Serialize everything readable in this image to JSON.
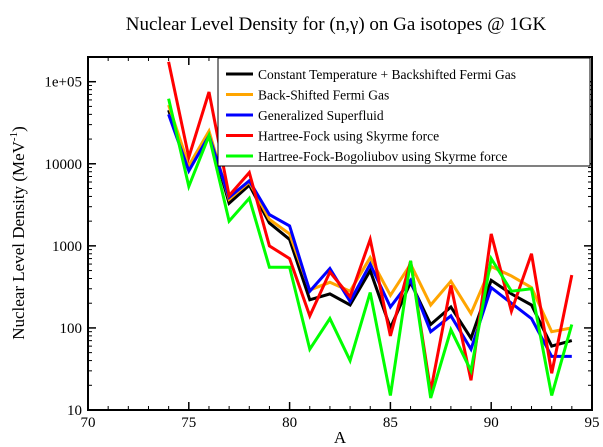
{
  "chart_data": {
    "type": "line",
    "title": "Nuclear Level Density for (n,γ) on Ga isotopes @ 1GK",
    "xlabel": "A",
    "ylabel": "Nuclear Level Density (MeV",
    "ylabel_sup": "-1",
    "ylabel_close": ")",
    "xlim": [
      70,
      95
    ],
    "ylim": [
      10,
      200000
    ],
    "yscale": "log",
    "grid": false,
    "legend_position": "top-right",
    "x_ticks": [
      70,
      75,
      80,
      85,
      90,
      95
    ],
    "x_tick_labels": [
      "70",
      "75",
      "80",
      "85",
      "90",
      "95"
    ],
    "y_ticks": [
      10,
      100,
      1000,
      10000,
      100000
    ],
    "y_tick_labels": [
      "10",
      "100",
      "1000",
      "10000",
      "1e+05"
    ],
    "x": [
      74,
      75,
      76,
      77,
      78,
      79,
      80,
      81,
      82,
      83,
      84,
      85,
      86,
      87,
      88,
      89,
      90,
      91,
      92,
      93,
      94
    ],
    "series": [
      {
        "name": "Constant Temperature + Backshifted Fermi Gas",
        "color": "#000000",
        "values": [
          45000,
          8500,
          24000,
          3300,
          5500,
          1900,
          1200,
          220,
          260,
          190,
          500,
          100,
          360,
          110,
          180,
          75,
          380,
          260,
          190,
          60,
          70
        ]
      },
      {
        "name": "Back-Shifted Fermi Gas",
        "color": "#FFA500",
        "values": [
          52000,
          9500,
          25000,
          3700,
          6000,
          2100,
          1400,
          290,
          360,
          280,
          720,
          250,
          600,
          190,
          370,
          150,
          560,
          430,
          310,
          90,
          100
        ]
      },
      {
        "name": "Generalized Superfluid",
        "color": "#0000FF",
        "values": [
          40000,
          8200,
          22000,
          3900,
          6200,
          2400,
          1750,
          280,
          530,
          210,
          600,
          180,
          380,
          90,
          140,
          55,
          310,
          200,
          130,
          45,
          45
        ]
      },
      {
        "name": "Hartree-Fock using Skyrme force",
        "color": "#FF0000",
        "values": [
          175000,
          12000,
          75000,
          4100,
          7800,
          1000,
          700,
          140,
          480,
          240,
          1200,
          80,
          650,
          17,
          330,
          23,
          1400,
          160,
          800,
          28,
          440
        ]
      },
      {
        "name": "Hartree-Fock-Bogoliubov using Skyrme force",
        "color": "#00FF00",
        "values": [
          62000,
          5300,
          22000,
          2000,
          3800,
          550,
          550,
          55,
          130,
          40,
          270,
          15,
          660,
          14,
          95,
          30,
          700,
          280,
          300,
          15,
          110
        ]
      }
    ]
  }
}
